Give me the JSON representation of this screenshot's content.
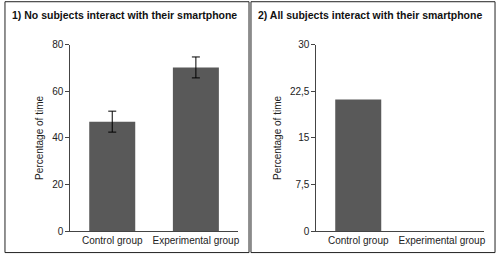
{
  "chart_data": [
    {
      "type": "bar",
      "title": "1) No subjects interact with their smartphone",
      "y_label": "Percentage of time",
      "categories": [
        "Control group",
        "Experimental group"
      ],
      "values": [
        47,
        70.3
      ],
      "errors": [
        4.5,
        4.5
      ],
      "color": "#595959",
      "ylim": [
        0,
        80
      ],
      "yticks": [
        0,
        20,
        40,
        60,
        80
      ],
      "grid": false
    },
    {
      "type": "bar",
      "title": "2) All subjects interact with their smartphone",
      "y_label": "Percentage of time",
      "categories": [
        "Control group",
        "Experimental group"
      ],
      "values": [
        21.2,
        0
      ],
      "color": "#595959",
      "ylim": [
        0,
        30
      ],
      "yticks": [
        0,
        {
          "value": 7.5,
          "label": "7,5"
        },
        15,
        {
          "value": 22.5,
          "label": "22,5"
        },
        30
      ],
      "grid": false
    }
  ]
}
